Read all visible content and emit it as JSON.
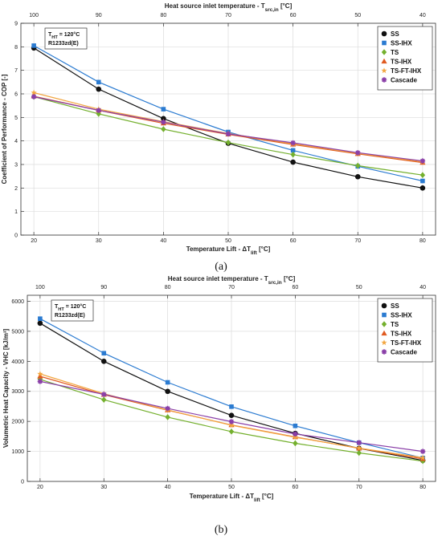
{
  "chart_data": [
    {
      "type": "line",
      "panel_label": "(a)",
      "xlabel": "Temperature Lift - ΔT",
      "xlabel_sub": "lift",
      "xlabel_unit": " [°C]",
      "top_xlabel": "Heat source inlet temperature - T",
      "top_xlabel_sub": "src,in",
      "top_xlabel_unit": " [°C]",
      "ylabel": "Coefficient of Performance - COP [-]",
      "xlim": [
        18,
        82
      ],
      "ylim": [
        0,
        9
      ],
      "xticks": [
        20,
        30,
        40,
        50,
        60,
        70,
        80
      ],
      "yticks": [
        0,
        1,
        2,
        3,
        4,
        5,
        6,
        7,
        8,
        9
      ],
      "top_ticks": [
        100,
        90,
        80,
        70,
        60,
        50,
        40
      ],
      "grid": true,
      "legend_position": "top-right",
      "annotation": {
        "line1_main": "T",
        "line1_sub": "HT",
        "line1_rest": " = 120°C",
        "line2": "R1233zd(E)"
      },
      "x": [
        20,
        30,
        40,
        50,
        60,
        70,
        80
      ],
      "series": [
        {
          "name": "SS",
          "color": "#111111",
          "marker": "circle",
          "values": [
            7.95,
            6.2,
            4.95,
            3.9,
            3.1,
            2.48,
            2.0
          ]
        },
        {
          "name": "SS-IHX",
          "color": "#2b7bd1",
          "marker": "square",
          "values": [
            8.05,
            6.5,
            5.35,
            4.38,
            3.6,
            2.92,
            2.3
          ]
        },
        {
          "name": "TS",
          "color": "#74b02e",
          "marker": "diamond",
          "values": [
            5.88,
            5.15,
            4.5,
            3.93,
            3.42,
            2.95,
            2.55
          ]
        },
        {
          "name": "TS-IHX",
          "color": "#e05a20",
          "marker": "triangle",
          "values": [
            5.9,
            5.3,
            4.75,
            4.28,
            3.85,
            3.45,
            3.08
          ]
        },
        {
          "name": "TS-FT-IHX",
          "color": "#f2a640",
          "marker": "star",
          "values": [
            6.05,
            5.35,
            4.82,
            4.32,
            3.88,
            3.48,
            3.12
          ]
        },
        {
          "name": "Cascade",
          "color": "#8a3fa8",
          "marker": "asterisk",
          "values": [
            5.88,
            5.3,
            4.8,
            4.3,
            3.92,
            3.5,
            3.15
          ]
        }
      ]
    },
    {
      "type": "line",
      "panel_label": "(b)",
      "xlabel": "Temperature Lift - ΔT",
      "xlabel_sub": "lift",
      "xlabel_unit": " [°C]",
      "top_xlabel": "Heat source inlet temperature - T",
      "top_xlabel_sub": "src,in",
      "top_xlabel_unit": " [°C]",
      "ylabel": "Volumetric Heat Capacity - VHC [kJ/m³]",
      "xlim": [
        18,
        82
      ],
      "ylim": [
        0,
        6200
      ],
      "xticks": [
        20,
        30,
        40,
        50,
        60,
        70,
        80
      ],
      "yticks": [
        0,
        1000,
        2000,
        3000,
        4000,
        5000,
        6000
      ],
      "top_ticks": [
        100,
        90,
        80,
        70,
        60,
        50,
        40
      ],
      "grid": true,
      "legend_position": "top-right",
      "annotation": {
        "line1_main": "T",
        "line1_sub": "HT",
        "line1_rest": " = 120°C",
        "line2": "R1233zd(E)"
      },
      "x": [
        20,
        30,
        40,
        50,
        60,
        70,
        80
      ],
      "series": [
        {
          "name": "SS",
          "color": "#111111",
          "marker": "circle",
          "values": [
            5270,
            4000,
            3000,
            2200,
            1600,
            1100,
            700
          ]
        },
        {
          "name": "SS-IHX",
          "color": "#2b7bd1",
          "marker": "square",
          "values": [
            5420,
            4270,
            3300,
            2490,
            1850,
            1290,
            780
          ]
        },
        {
          "name": "TS",
          "color": "#74b02e",
          "marker": "diamond",
          "values": [
            3400,
            2720,
            2140,
            1660,
            1270,
            950,
            680
          ]
        },
        {
          "name": "TS-IHX",
          "color": "#e05a20",
          "marker": "triangle",
          "values": [
            3500,
            2890,
            2370,
            1880,
            1480,
            1100,
            750
          ]
        },
        {
          "name": "TS-FT-IHX",
          "color": "#f2a640",
          "marker": "star",
          "values": [
            3580,
            2920,
            2380,
            1870,
            1470,
            1110,
            790
          ]
        },
        {
          "name": "Cascade",
          "color": "#8a3fa8",
          "marker": "asterisk",
          "values": [
            3330,
            2900,
            2430,
            1990,
            1580,
            1290,
            1000
          ]
        }
      ]
    }
  ]
}
